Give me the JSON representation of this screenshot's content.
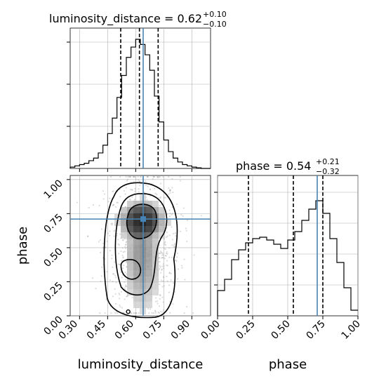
{
  "chart_data": {
    "type": "corner",
    "panels": [
      {
        "id": "hist_luminosity_distance",
        "type": "histogram",
        "title": {
          "main": "luminosity_distance = 0.62",
          "sup": "+0.10",
          "sub": "−0.10"
        },
        "xlim": [
          0.25,
          1.0
        ],
        "bins": [
          0.25,
          0.275,
          0.3,
          0.325,
          0.35,
          0.375,
          0.4,
          0.425,
          0.45,
          0.475,
          0.5,
          0.525,
          0.55,
          0.575,
          0.6,
          0.625,
          0.65,
          0.675,
          0.7,
          0.725,
          0.75,
          0.775,
          0.8,
          0.825,
          0.85,
          0.875,
          0.9,
          0.925,
          0.95,
          0.975,
          1.0
        ],
        "counts": [
          0.01,
          0.02,
          0.03,
          0.04,
          0.06,
          0.08,
          0.12,
          0.18,
          0.27,
          0.39,
          0.55,
          0.72,
          0.86,
          0.94,
          1.0,
          0.96,
          0.88,
          0.76,
          0.56,
          0.36,
          0.22,
          0.13,
          0.08,
          0.05,
          0.03,
          0.02,
          0.01,
          0.005,
          0.0,
          0.0
        ],
        "quantile_lines": [
          0.52,
          0.62,
          0.72
        ],
        "truth": 0.64
      },
      {
        "id": "hist_phase",
        "type": "histogram",
        "title": {
          "main": "phase = 0.54",
          "sup": "+0.21",
          "sub": "−0.32"
        },
        "xlim": [
          0.0,
          1.0
        ],
        "xticks": [
          0.0,
          0.25,
          0.5,
          0.75,
          1.0
        ],
        "xtick_labels": [
          "0.00",
          "0.25",
          "0.50",
          "0.75",
          "1.00"
        ],
        "xlabel": "phase",
        "bins": [
          0.0,
          0.05,
          0.1,
          0.15,
          0.2,
          0.25,
          0.3,
          0.35,
          0.4,
          0.45,
          0.5,
          0.55,
          0.6,
          0.65,
          0.7,
          0.75,
          0.8,
          0.85,
          0.9,
          0.95,
          1.0
        ],
        "counts": [
          0.18,
          0.26,
          0.4,
          0.47,
          0.52,
          0.55,
          0.56,
          0.54,
          0.51,
          0.48,
          0.54,
          0.6,
          0.68,
          0.76,
          0.82,
          0.73,
          0.55,
          0.38,
          0.2,
          0.04
        ],
        "quantile_lines": [
          0.22,
          0.54,
          0.75
        ],
        "truth": 0.71
      },
      {
        "id": "scatter_2d",
        "type": "density_2d",
        "xlim": [
          0.25,
          1.0
        ],
        "ylim": [
          0.0,
          1.03
        ],
        "xticks": [
          0.3,
          0.45,
          0.6,
          0.75,
          0.9
        ],
        "xtick_labels": [
          "0.30",
          "0.45",
          "0.60",
          "0.75",
          "0.90"
        ],
        "yticks": [
          0.0,
          0.25,
          0.5,
          0.75,
          1.0
        ],
        "ytick_labels": [
          "0.00",
          "0.25",
          "0.50",
          "0.75",
          "1.00"
        ],
        "xlabel": "luminosity_distance",
        "ylabel": "phase",
        "truth": {
          "x": 0.64,
          "y": 0.71
        },
        "contour_center": {
          "x": 0.635,
          "y": 0.7
        }
      }
    ]
  },
  "colors": {
    "hist_line": "#000000",
    "truth": "#4682b4",
    "grid": "#b0b0b0",
    "quantile": "#000000",
    "contour": "#000000"
  }
}
